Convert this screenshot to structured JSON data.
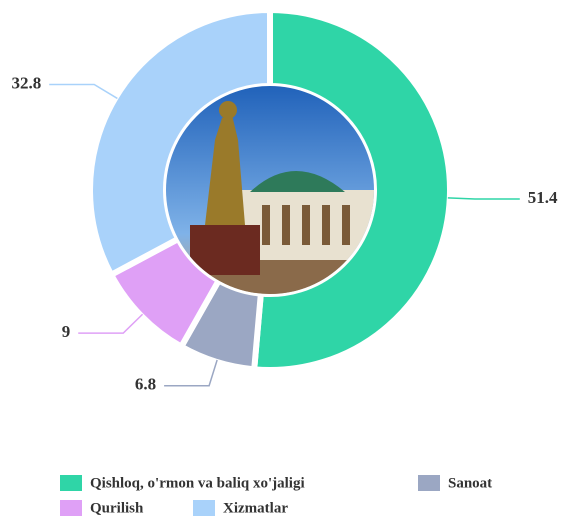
{
  "chart_data": {
    "type": "donut",
    "categories": [
      "Qishloq, o'rmon va baliq xo'jaligi",
      "Sanoat",
      "Qurilish",
      "Xizmatlar"
    ],
    "values": [
      51.4,
      6.8,
      9,
      32.8
    ],
    "colors": [
      "#2fd5a7",
      "#9ba7c3",
      "#dfa0f6",
      "#a9d2fa"
    ],
    "legend": "bottom"
  }
}
